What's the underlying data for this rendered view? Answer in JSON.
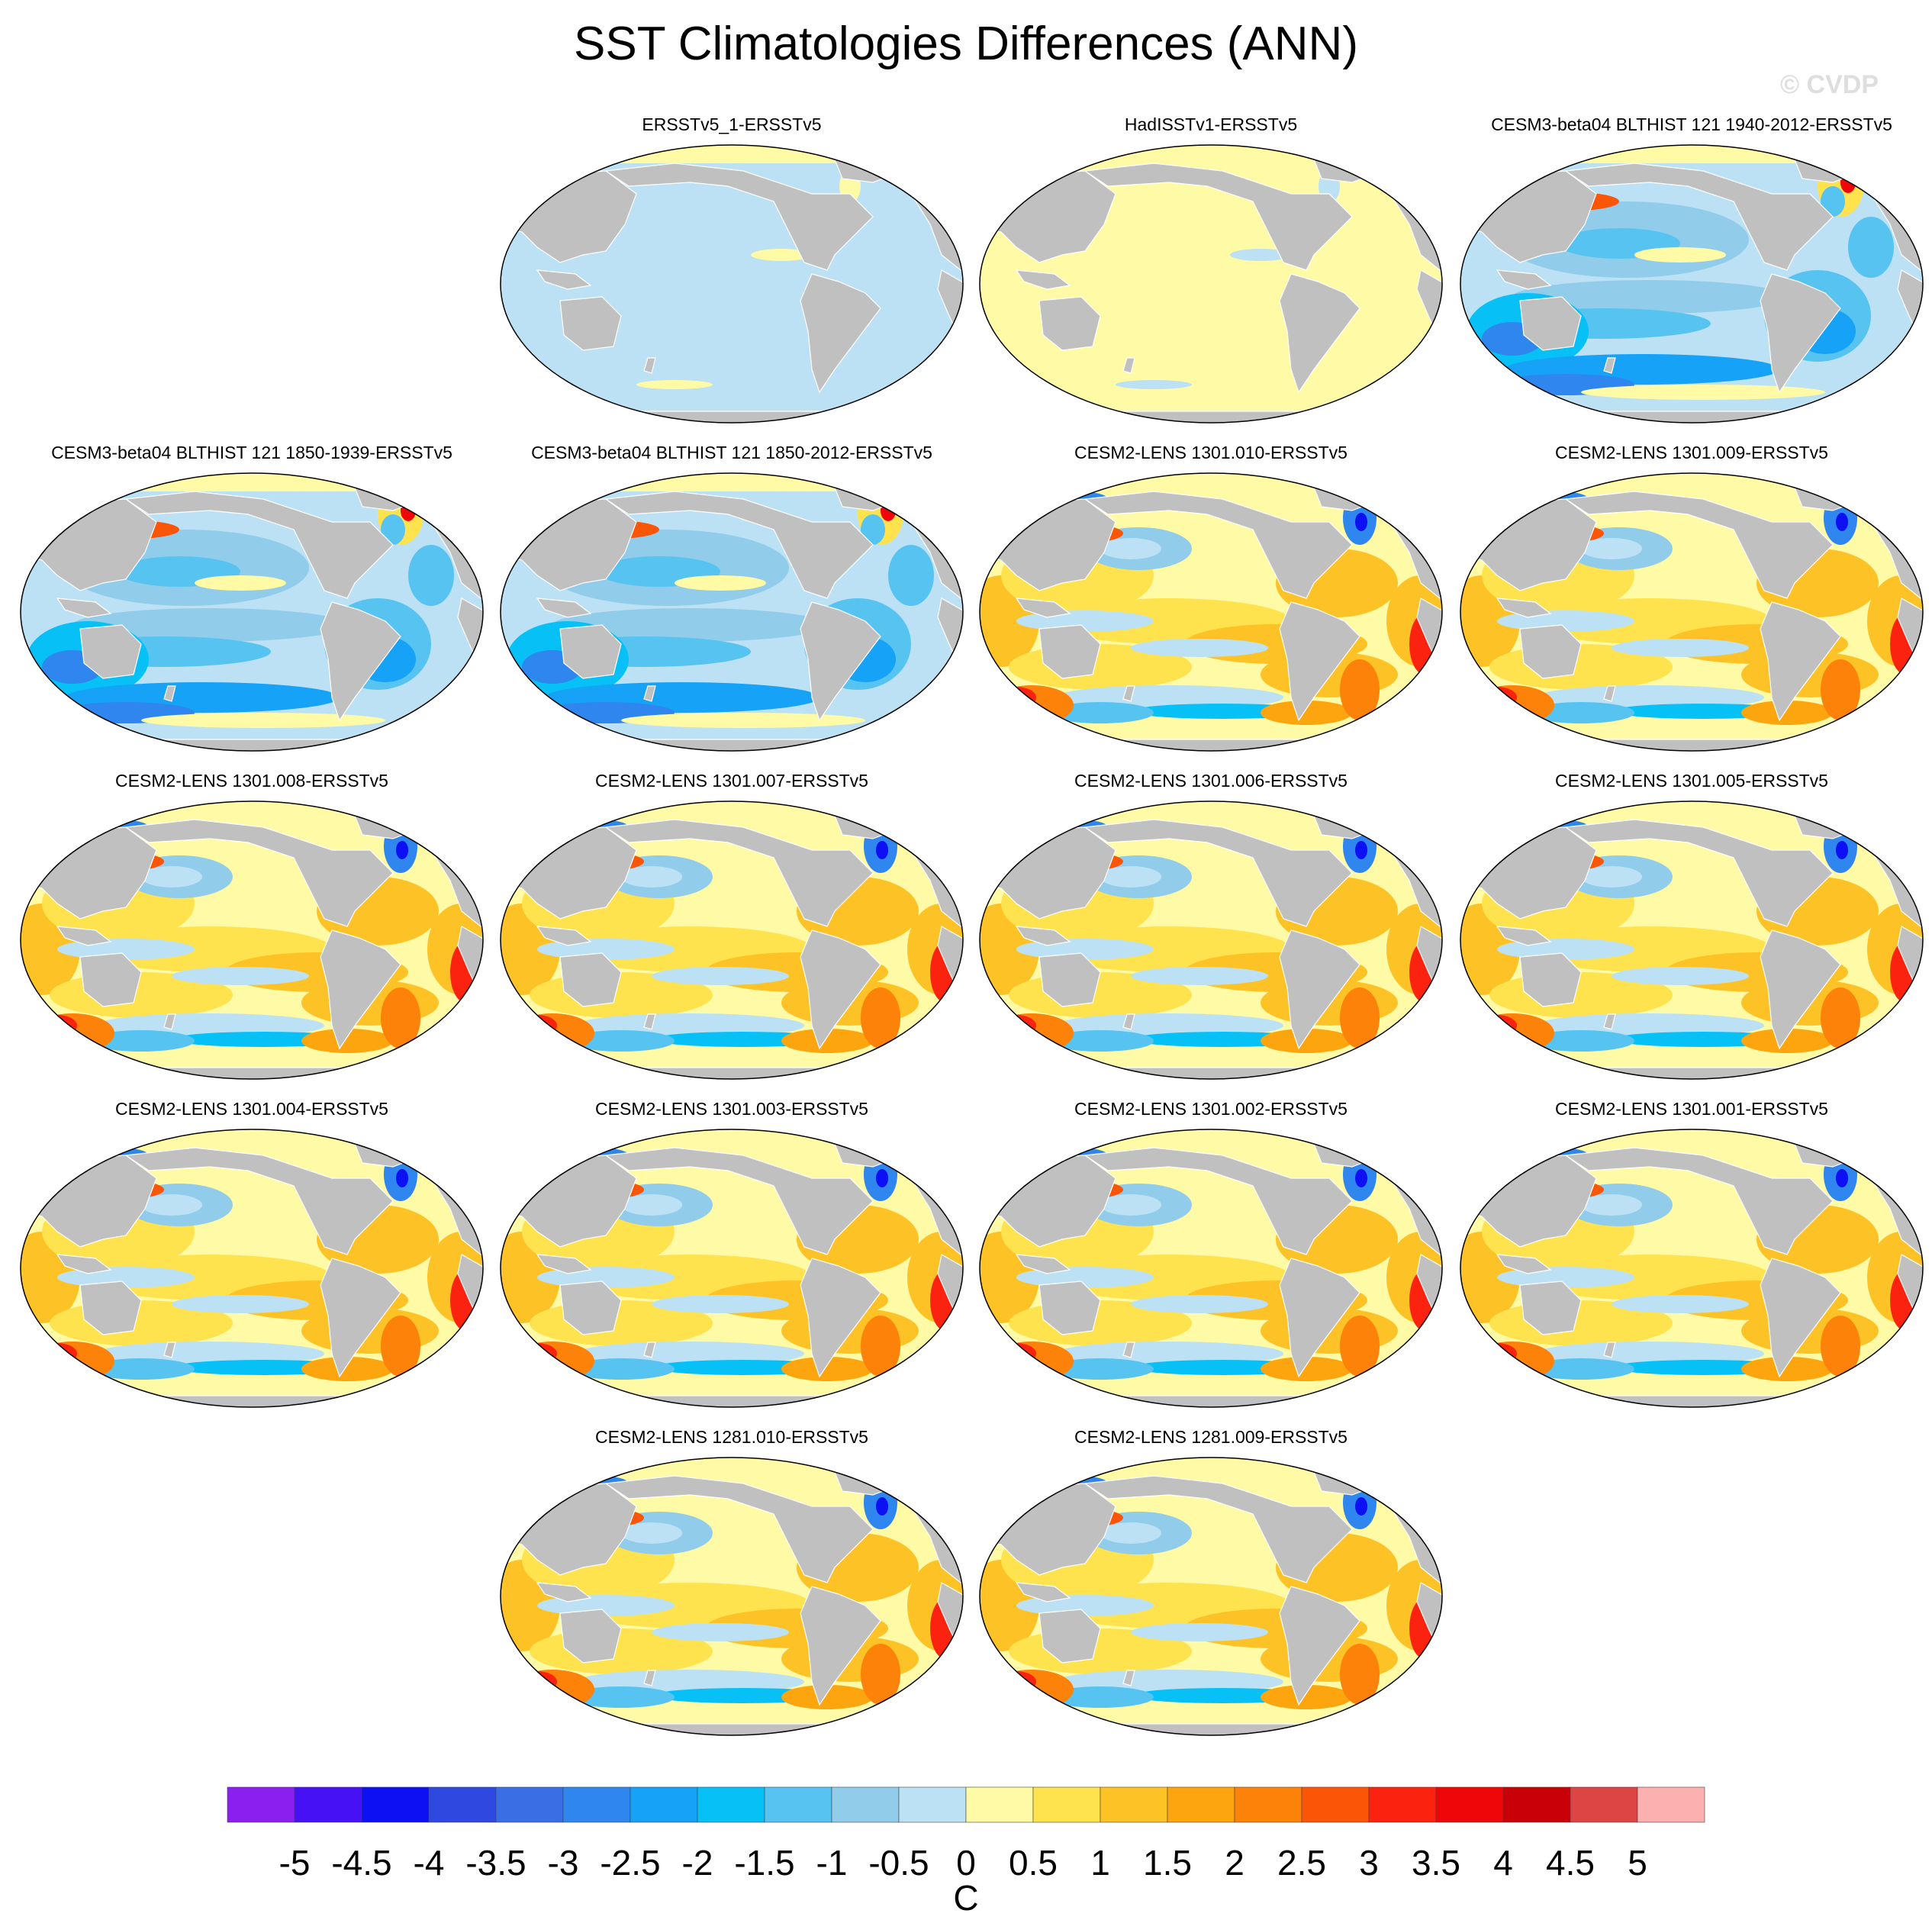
{
  "title": "SST Climatologies Differences (ANN)",
  "watermark": "© CVDP",
  "colorbar": {
    "units": "C",
    "ticks": [
      "-5",
      "-4.5",
      "-4",
      "-3.5",
      "-3",
      "-2.5",
      "-2",
      "-1.5",
      "-1",
      "-0.5",
      "0",
      "0.5",
      "1",
      "1.5",
      "2",
      "2.5",
      "3",
      "3.5",
      "4",
      "4.5",
      "5"
    ],
    "colors": [
      "#8a1ff0",
      "#4612f5",
      "#0c10f2",
      "#2f48e0",
      "#3a6ee4",
      "#2e86ee",
      "#16a2f6",
      "#06c0f6",
      "#57c3f0",
      "#92cceb",
      "#bce1f5",
      "#fffaa6",
      "#ffe34e",
      "#fdc226",
      "#fda50f",
      "#fc820a",
      "#fb5508",
      "#fb2210",
      "#ef0609",
      "#c90008",
      "#dd4444",
      "#fcb0b0"
    ]
  },
  "land_color": "#c0c0c0",
  "panels": [
    {
      "title": "ERSSTv5_1-ERSSTv5",
      "pattern": "uniform-cool"
    },
    {
      "title": "HadISSTv1-ERSSTv5",
      "pattern": "uniform-warm"
    },
    {
      "title": "CESM3-beta04 BLTHIST 121 1940-2012-ERSSTv5",
      "pattern": "cool-bias"
    },
    {
      "title": "CESM3-beta04 BLTHIST 121 1850-1939-ERSSTv5",
      "pattern": "cool-bias"
    },
    {
      "title": "CESM3-beta04 BLTHIST 121 1850-2012-ERSSTv5",
      "pattern": "cool-bias"
    },
    {
      "title": "CESM2-LENS 1301.010-ERSSTv5",
      "pattern": "warm-bias"
    },
    {
      "title": "CESM2-LENS 1301.009-ERSSTv5",
      "pattern": "warm-bias"
    },
    {
      "title": "CESM2-LENS 1301.008-ERSSTv5",
      "pattern": "warm-bias"
    },
    {
      "title": "CESM2-LENS 1301.007-ERSSTv5",
      "pattern": "warm-bias"
    },
    {
      "title": "CESM2-LENS 1301.006-ERSSTv5",
      "pattern": "warm-bias"
    },
    {
      "title": "CESM2-LENS 1301.005-ERSSTv5",
      "pattern": "warm-bias"
    },
    {
      "title": "CESM2-LENS 1301.004-ERSSTv5",
      "pattern": "warm-bias"
    },
    {
      "title": "CESM2-LENS 1301.003-ERSSTv5",
      "pattern": "warm-bias"
    },
    {
      "title": "CESM2-LENS 1301.002-ERSSTv5",
      "pattern": "warm-bias"
    },
    {
      "title": "CESM2-LENS 1301.001-ERSSTv5",
      "pattern": "warm-bias"
    },
    {
      "title": "CESM2-LENS 1281.010-ERSSTv5",
      "pattern": "warm-bias"
    },
    {
      "title": "CESM2-LENS 1281.009-ERSSTv5",
      "pattern": "warm-bias"
    }
  ]
}
